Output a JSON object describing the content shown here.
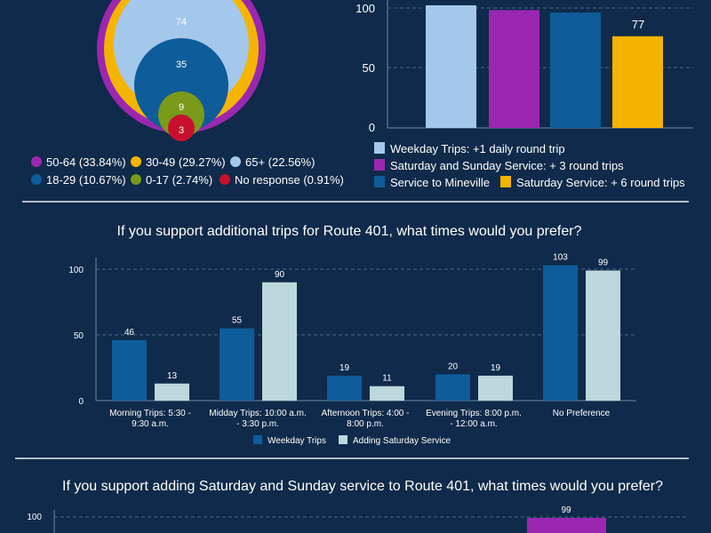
{
  "colors": {
    "background": "#0f2a4a",
    "purple": "#9b27b0",
    "gold": "#f5b400",
    "light_blue": "#a4c8ec",
    "mid_blue": "#0e5c9a",
    "green": "#7a9a1a",
    "red": "#c8102e",
    "pale": "#bcd8dc",
    "grid": "#4a6b8a"
  },
  "chart_data": [
    {
      "id": "age-bubble",
      "type": "bubble",
      "values": [
        74,
        35,
        9,
        3
      ],
      "legend": [
        {
          "label": "50-64 (33.84%)",
          "color": "#9b27b0"
        },
        {
          "label": "30-49 (29.27%)",
          "color": "#f5b400"
        },
        {
          "label": "65+ (22.56%)",
          "color": "#a4c8ec"
        },
        {
          "label": "18-29 (10.67%)",
          "color": "#0e5c9a"
        },
        {
          "label": "0-17 (2.74%)",
          "color": "#7a9a1a"
        },
        {
          "label": "No response (0.91%)",
          "color": "#c8102e"
        }
      ]
    },
    {
      "id": "service-preference",
      "type": "bar",
      "categories": [
        "Weekday Trips: +1 daily round trip",
        "Saturday and Sunday Service: + 3 round trips",
        "Service to Mineville",
        "Saturday Service: + 6 round trips"
      ],
      "values": [
        103,
        99,
        97,
        77
      ],
      "value_labels": [
        "",
        "",
        "",
        "77"
      ],
      "colors": [
        "#a4c8ec",
        "#9b27b0",
        "#0e5c9a",
        "#f5b400"
      ],
      "y_ticks": [
        0,
        50,
        100
      ],
      "ylim": [
        0,
        105
      ]
    },
    {
      "id": "route401-additional-times",
      "type": "bar",
      "title": "If you support additional trips for Route 401, what times would you prefer?",
      "categories": [
        [
          "Morning Trips: 5:30 -",
          "9:30 a.m."
        ],
        [
          "Midday Trips: 10:00 a.m.",
          "- 3:30 p.m."
        ],
        [
          "Afternoon Trips: 4:00 -",
          "8:00 p.m."
        ],
        [
          "Evening Trips: 8:00 p.m.",
          "- 12:00 a.m."
        ],
        [
          "No Preference"
        ]
      ],
      "series": [
        {
          "name": "Weekday Trips",
          "color": "#0e5c9a",
          "values": [
            46,
            55,
            19,
            20,
            103
          ]
        },
        {
          "name": "Adding Saturday Service",
          "color": "#bcd8dc",
          "values": [
            13,
            90,
            11,
            19,
            99
          ]
        }
      ],
      "y_ticks": [
        0,
        50,
        100
      ],
      "ylim": [
        0,
        105
      ]
    },
    {
      "id": "route401-weekend-times",
      "type": "bar",
      "title": "If you support adding Saturday and Sunday service to Route 401, what times would you prefer?",
      "values": [
        99
      ],
      "color": "#9b27b0",
      "y_ticks": [
        100
      ]
    }
  ]
}
